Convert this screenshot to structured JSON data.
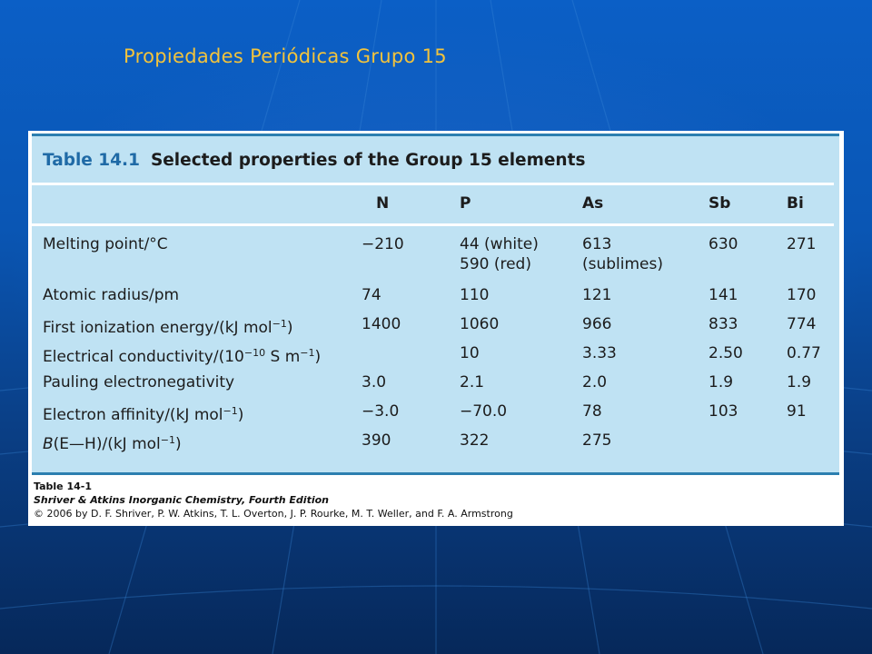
{
  "slide": {
    "title": "Propiedades Periódicas Grupo 15"
  },
  "table": {
    "number": "Table 14.1",
    "caption": "Selected properties of the Group 15 elements",
    "columns": [
      "N",
      "P",
      "As",
      "Sb",
      "Bi"
    ],
    "rows": [
      {
        "label_html": "Melting point/°C",
        "values": [
          "−210",
          "44 (white)\n590 (red)",
          "613\n(sublimes)",
          "630",
          "271"
        ]
      },
      {
        "label_html": "Atomic radius/pm",
        "values": [
          "74",
          "110",
          "121",
          "141",
          "170"
        ]
      },
      {
        "label_html": "First ionization energy/(kJ mol<sup>−1</sup>)",
        "values": [
          "1400",
          "1060",
          "966",
          "833",
          "774"
        ]
      },
      {
        "label_html": "Electrical conductivity/(10<sup>−10</sup> S m<sup>−1</sup>)",
        "values": [
          "",
          "10",
          "3.33",
          "2.50",
          "0.77"
        ]
      },
      {
        "label_html": "Pauling electronegativity",
        "values": [
          "3.0",
          "2.1",
          "2.0",
          "1.9",
          "1.9"
        ]
      },
      {
        "label_html": "Electron affinity/(kJ mol<sup>−1</sup>)",
        "values": [
          "−3.0",
          "−70.0",
          "78",
          "103",
          "91"
        ]
      },
      {
        "label_html": "<i>B</i>(E—H)/(kJ mol<sup>−1</sup>)",
        "values": [
          "390",
          "322",
          "275",
          "",
          ""
        ]
      }
    ]
  },
  "credits": {
    "line1": "Table 14-1",
    "line2": "Shriver & Atkins Inorganic Chemistry, Fourth Edition",
    "line3": "© 2006 by D. F. Shriver, P. W. Atkins, T. L. Overton, J. P. Rourke, M. T. Weller, and F. A. Armstrong"
  },
  "colors": {
    "title": "#f2c33c",
    "table_bg": "#bfe2f3",
    "rule": "#2c7fb0",
    "table_number": "#1f6aa6"
  }
}
